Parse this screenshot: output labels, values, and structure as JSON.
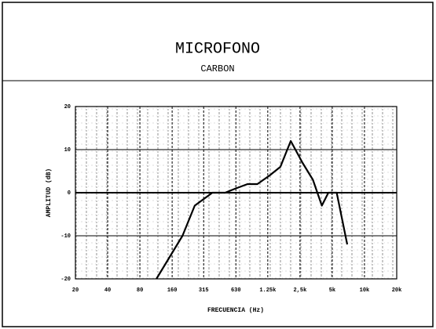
{
  "chart_data": {
    "type": "line",
    "title": "MICROFONO",
    "subtitle": "CARBON",
    "x_label": "FRECUENCIA (Hz)",
    "y_label": "AMPLITUD (dB)",
    "x": [
      114,
      200,
      260,
      380,
      500,
      630,
      810,
      1000,
      1300,
      1640,
      2050,
      2630,
      3300,
      4000,
      4600,
      5500,
      6900
    ],
    "values": [
      -20,
      -10,
      -3,
      0,
      0,
      1,
      2,
      2,
      4,
      6,
      12,
      7,
      3,
      -3,
      0,
      0,
      -12
    ],
    "color": "#000000",
    "xlim": [
      20,
      20000
    ],
    "xscale": "log",
    "xticks": [
      20,
      40,
      80,
      160,
      315,
      630,
      {
        "value": 1250,
        "label": "1.25k"
      },
      {
        "value": 2500,
        "label": "2,5k"
      },
      {
        "value": 5000,
        "label": "5k"
      },
      {
        "value": 10000,
        "label": "10k"
      },
      {
        "value": 20000,
        "label": "20k"
      }
    ],
    "ylim": [
      -20,
      20
    ],
    "yticks": [
      -20,
      -10,
      0,
      10,
      20
    ],
    "grid": true
  }
}
